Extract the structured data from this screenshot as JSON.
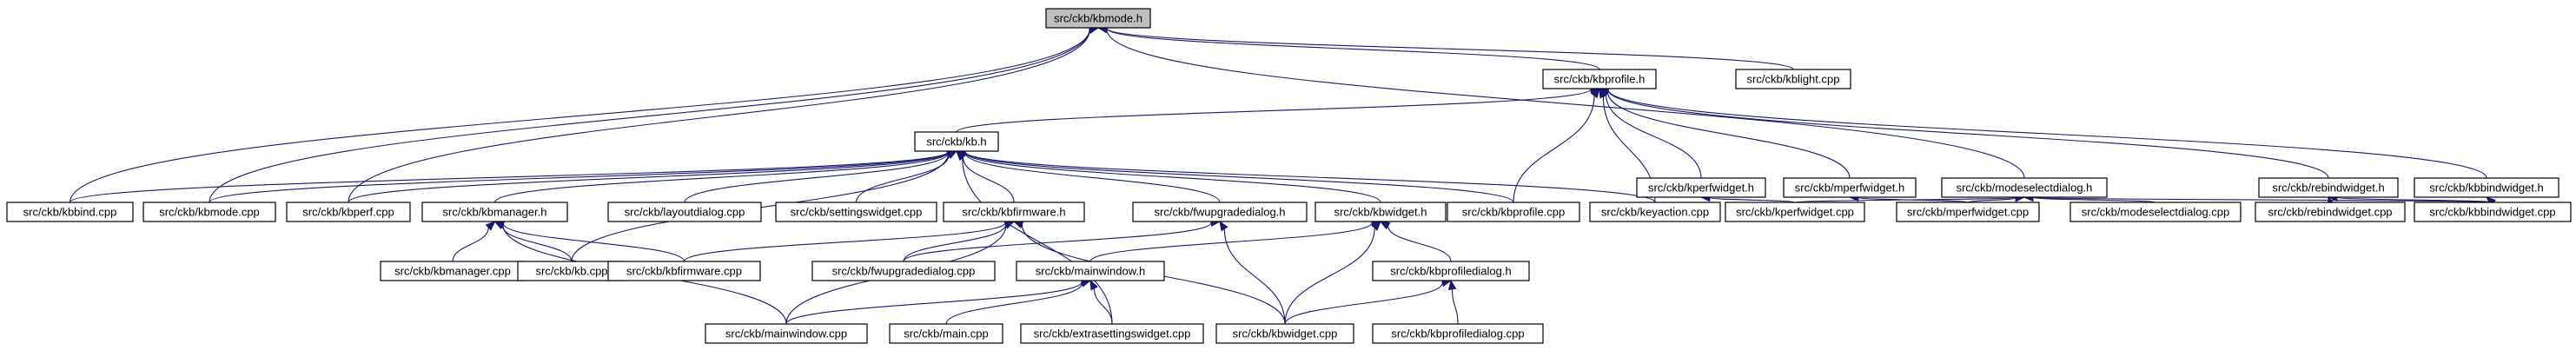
{
  "nodes": [
    {
      "id": "kbmode_h",
      "label": "src/ckb/kbmode.h",
      "root": true
    },
    {
      "id": "kbprofile_h",
      "label": "src/ckb/kbprofile.h"
    },
    {
      "id": "kblight_cpp",
      "label": "src/ckb/kblight.cpp"
    },
    {
      "id": "kb_h",
      "label": "src/ckb/kb.h"
    },
    {
      "id": "kperfwidget_h",
      "label": "src/ckb/kperfwidget.h"
    },
    {
      "id": "mperfwidget_h",
      "label": "src/ckb/mperfwidget.h"
    },
    {
      "id": "modeselectdialog_h",
      "label": "src/ckb/modeselectdialog.h"
    },
    {
      "id": "rebindwidget_h",
      "label": "src/ckb/rebindwidget.h"
    },
    {
      "id": "kbbindwidget_h",
      "label": "src/ckb/kbbindwidget.h"
    },
    {
      "id": "kbbind_cpp",
      "label": "src/ckb/kbbind.cpp"
    },
    {
      "id": "kbmode_cpp",
      "label": "src/ckb/kbmode.cpp"
    },
    {
      "id": "kbperf_cpp",
      "label": "src/ckb/kbperf.cpp"
    },
    {
      "id": "kbmanager_h",
      "label": "src/ckb/kbmanager.h"
    },
    {
      "id": "kblayoutdialog_cpp",
      "label": "src/ckb/layoutdialog.cpp"
    },
    {
      "id": "settingswidget_cpp",
      "label": "src/ckb/settingswidget.cpp"
    },
    {
      "id": "kbfirmware_h",
      "label": "src/ckb/kbfirmware.h"
    },
    {
      "id": "fwupgradedialog_h",
      "label": "src/ckb/fwupgradedialog.h"
    },
    {
      "id": "kbwidget_h",
      "label": "src/ckb/kbwidget.h"
    },
    {
      "id": "kbprofile_cpp",
      "label": "src/ckb/kbprofile.cpp"
    },
    {
      "id": "keyaction_cpp",
      "label": "src/ckb/keyaction.cpp"
    },
    {
      "id": "kperfwidget_cpp",
      "label": "src/ckb/kperfwidget.cpp"
    },
    {
      "id": "mperfwidget_cpp",
      "label": "src/ckb/mperfwidget.cpp"
    },
    {
      "id": "modeselectdialog_cpp",
      "label": "src/ckb/modeselectdialog.cpp"
    },
    {
      "id": "rebindwidget_cpp",
      "label": "src/ckb/rebindwidget.cpp"
    },
    {
      "id": "kbbindwidget_cpp",
      "label": "src/ckb/kbbindwidget.cpp"
    },
    {
      "id": "kbmanager_cpp",
      "label": "src/ckb/kbmanager.cpp"
    },
    {
      "id": "kb_cpp",
      "label": "src/ckb/kb.cpp"
    },
    {
      "id": "kbfirmware_cpp",
      "label": "src/ckb/kbfirmware.cpp"
    },
    {
      "id": "fwupgradedialog_cpp",
      "label": "src/ckb/fwupgradedialog.cpp"
    },
    {
      "id": "mainwindow_h",
      "label": "src/ckb/mainwindow.h"
    },
    {
      "id": "kbprofiledialog_h",
      "label": "src/ckb/kbprofiledialog.h"
    },
    {
      "id": "mainwindow_cpp",
      "label": "src/ckb/mainwindow.cpp"
    },
    {
      "id": "main_cpp",
      "label": "src/ckb/main.cpp"
    },
    {
      "id": "extrasettingswidget_cpp",
      "label": "src/ckb/extrasettingswidget.cpp"
    },
    {
      "id": "kbwidget_cpp",
      "label": "src/ckb/kbwidget.cpp"
    },
    {
      "id": "kbprofiledialog_cpp",
      "label": "src/ckb/kbprofiledialog.cpp"
    }
  ],
  "edges": [
    [
      "kbmode_h",
      "kbprofile_h"
    ],
    [
      "kbmode_h",
      "kblight_cpp"
    ],
    [
      "kbmode_h",
      "kbbind_cpp"
    ],
    [
      "kbmode_h",
      "kbmode_cpp"
    ],
    [
      "kbmode_h",
      "kbperf_cpp"
    ],
    [
      "kbmode_h",
      "modeselectdialog_h"
    ],
    [
      "kbprofile_h",
      "kb_h"
    ],
    [
      "kbprofile_h",
      "kperfwidget_h"
    ],
    [
      "kbprofile_h",
      "mperfwidget_h"
    ],
    [
      "kbprofile_h",
      "rebindwidget_h"
    ],
    [
      "kbprofile_h",
      "kbbindwidget_h"
    ],
    [
      "kbprofile_h",
      "kbprofile_cpp"
    ],
    [
      "kbprofile_h",
      "keyaction_cpp"
    ],
    [
      "kb_h",
      "kbbind_cpp"
    ],
    [
      "kb_h",
      "kbmode_cpp"
    ],
    [
      "kb_h",
      "kbperf_cpp"
    ],
    [
      "kb_h",
      "kbmanager_h"
    ],
    [
      "kb_h",
      "kblayoutdialog_cpp"
    ],
    [
      "kb_h",
      "settingswidget_cpp"
    ],
    [
      "kb_h",
      "kbfirmware_h"
    ],
    [
      "kb_h",
      "fwupgradedialog_h"
    ],
    [
      "kb_h",
      "kbwidget_h"
    ],
    [
      "kb_h",
      "kbprofile_cpp"
    ],
    [
      "kb_h",
      "keyaction_cpp"
    ],
    [
      "kb_h",
      "kb_cpp"
    ],
    [
      "kb_h",
      "extrasettingswidget_cpp"
    ],
    [
      "kperfwidget_h",
      "kperfwidget_cpp"
    ],
    [
      "mperfwidget_h",
      "mperfwidget_cpp"
    ],
    [
      "modeselectdialog_h",
      "kperfwidget_cpp"
    ],
    [
      "modeselectdialog_h",
      "mperfwidget_cpp"
    ],
    [
      "modeselectdialog_h",
      "modeselectdialog_cpp"
    ],
    [
      "modeselectdialog_h",
      "kbbindwidget_cpp"
    ],
    [
      "rebindwidget_h",
      "rebindwidget_cpp"
    ],
    [
      "rebindwidget_h",
      "kbbindwidget_cpp"
    ],
    [
      "kbbindwidget_h",
      "kbbindwidget_cpp"
    ],
    [
      "kbmanager_h",
      "kbmanager_cpp"
    ],
    [
      "kbmanager_h",
      "kb_cpp"
    ],
    [
      "kbmanager_h",
      "kbfirmware_cpp"
    ],
    [
      "kbmanager_h",
      "mainwindow_cpp"
    ],
    [
      "kbfirmware_h",
      "kbfirmware_cpp"
    ],
    [
      "kbfirmware_h",
      "fwupgradedialog_cpp"
    ],
    [
      "kbfirmware_h",
      "mainwindow_cpp"
    ],
    [
      "kbfirmware_h",
      "kbwidget_cpp"
    ],
    [
      "fwupgradedialog_h",
      "fwupgradedialog_cpp"
    ],
    [
      "fwupgradedialog_h",
      "kbwidget_cpp"
    ],
    [
      "kbwidget_h",
      "mainwindow_h"
    ],
    [
      "kbwidget_h",
      "kbprofiledialog_h"
    ],
    [
      "kbwidget_h",
      "kbwidget_cpp"
    ],
    [
      "mainwindow_h",
      "mainwindow_cpp"
    ],
    [
      "mainwindow_h",
      "main_cpp"
    ],
    [
      "mainwindow_h",
      "extrasettingswidget_cpp"
    ],
    [
      "kbprofiledialog_h",
      "kbwidget_cpp"
    ],
    [
      "kbprofiledialog_h",
      "kbprofiledialog_cpp"
    ]
  ],
  "colors": {
    "edge": "#191970",
    "root_fill": "#bfbfbf",
    "node_fill": "#ffffff",
    "node_border": "#000000"
  }
}
